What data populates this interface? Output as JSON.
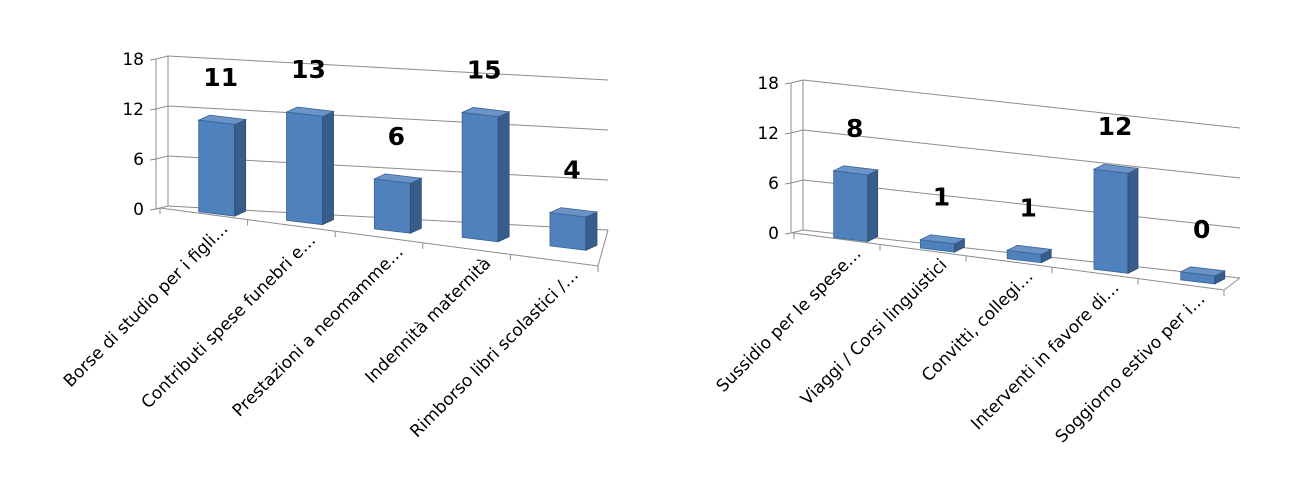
{
  "chart_data": [
    {
      "type": "bar",
      "categories": [
        "Borse di studio per i figli…",
        "Contributi spese funebri e…",
        "Prestazioni a neomamme…",
        "Indennità maternità",
        "Rimborso libri scolastici /…"
      ],
      "values": [
        11,
        13,
        6,
        15,
        4
      ],
      "y_ticks": [
        "0",
        "6",
        "12",
        "18"
      ],
      "ylim": [
        0,
        18
      ],
      "title": "",
      "xlabel": "",
      "ylabel": "",
      "bar_color": "#4f81bd",
      "style": "3d-column",
      "grid": true
    },
    {
      "type": "bar",
      "categories": [
        "Sussidio per le spese…",
        "Viaggi / Corsi linguistici",
        "Convitti, collegi…",
        "Interventi in favore di…",
        "Soggiorno estivo per i…"
      ],
      "values": [
        8,
        1,
        1,
        12,
        0
      ],
      "y_ticks": [
        "0",
        "6",
        "12",
        "18"
      ],
      "ylim": [
        0,
        18
      ],
      "title": "",
      "xlabel": "",
      "ylabel": "",
      "bar_color": "#4f81bd",
      "style": "3d-column",
      "grid": true
    }
  ]
}
